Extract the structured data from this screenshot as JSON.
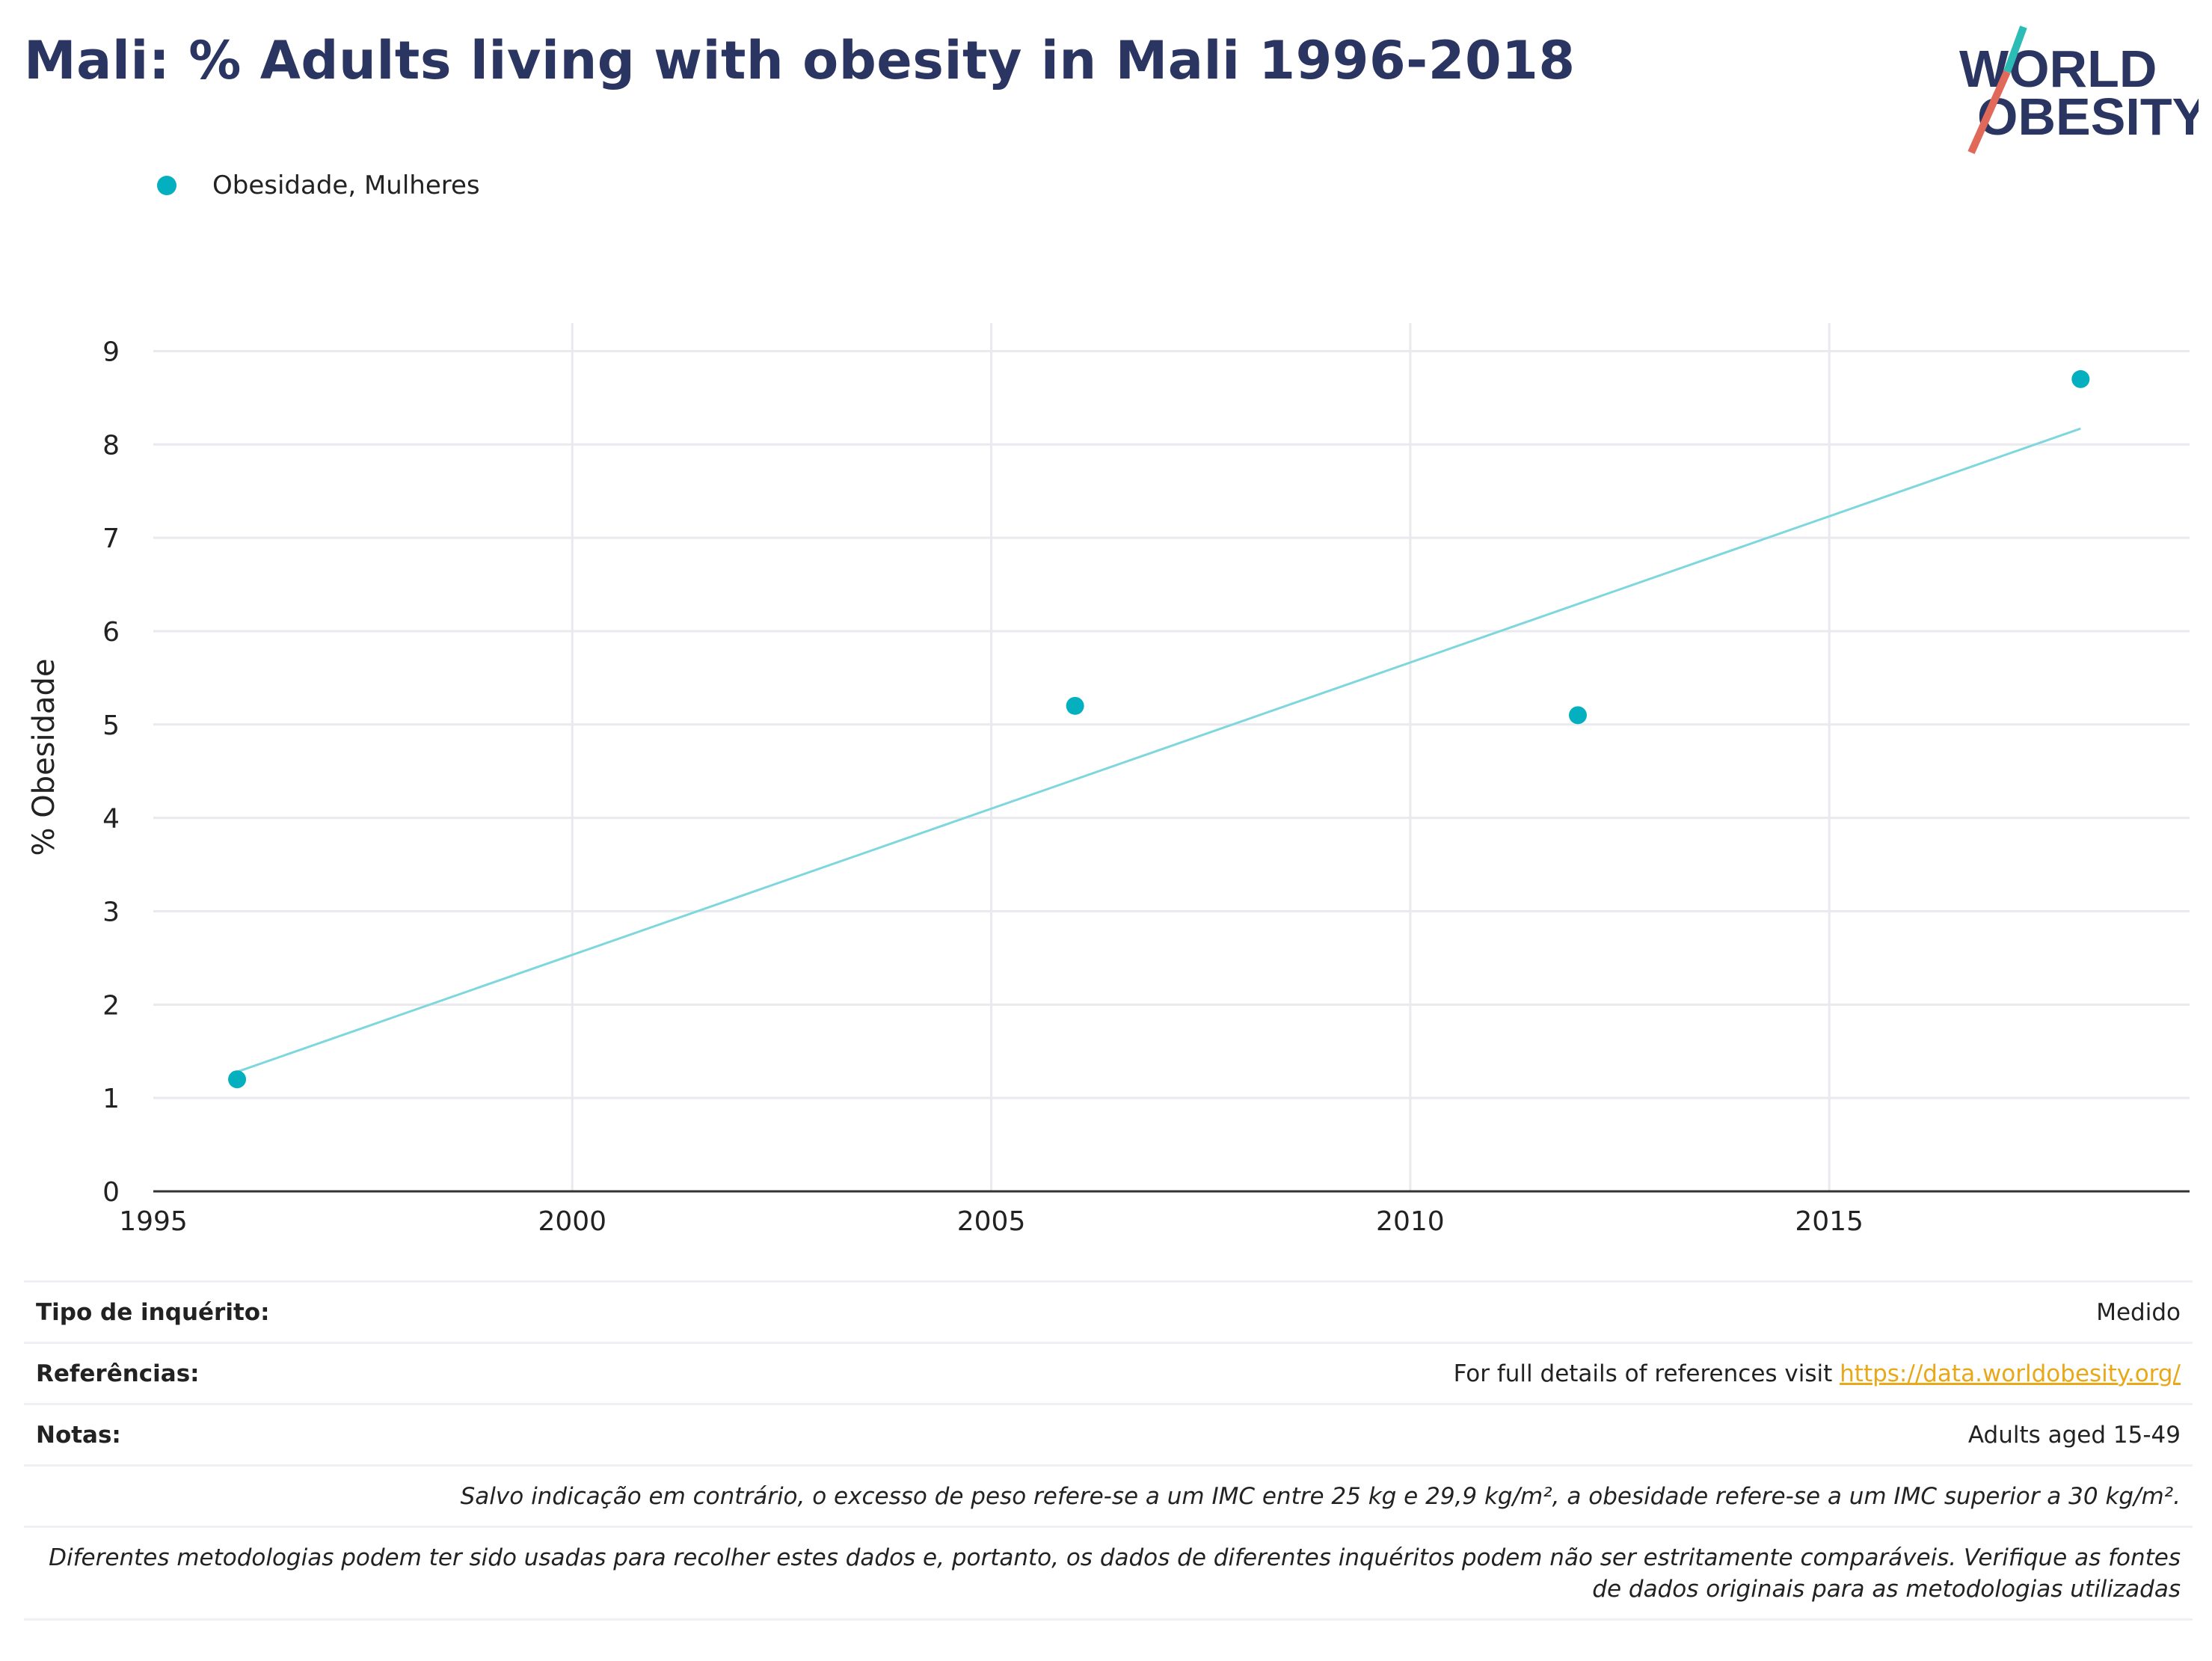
{
  "title": "Mali: % Adults living with obesity in Mali 1996-2018",
  "logo": {
    "line1": "WORLD",
    "line2": "OBESITY",
    "brand_color": "#2b3562",
    "slash_teal": "#2bbcb6",
    "slash_red": "#e0695a"
  },
  "legend": {
    "label": "Obesidade, Mulheres",
    "color": "#04b0c0"
  },
  "chart_data": {
    "type": "scatter",
    "series": [
      {
        "name": "Obesidade, Mulheres",
        "color": "#04b0c0",
        "x": [
          1996,
          2006,
          2012,
          2018
        ],
        "y": [
          1.2,
          5.2,
          5.1,
          8.7
        ]
      }
    ],
    "trendline": {
      "color": "#7fd7de",
      "x": [
        1996,
        2018
      ],
      "y": [
        1.28,
        8.17
      ]
    },
    "xlabel": "",
    "ylabel": "% Obesidade",
    "xlim": [
      1995,
      2019.3
    ],
    "ylim": [
      0,
      9.3
    ],
    "xticks": [
      1995,
      2000,
      2005,
      2010,
      2015
    ],
    "yticks": [
      0,
      1,
      2,
      3,
      4,
      5,
      6,
      7,
      8,
      9
    ],
    "grid": true
  },
  "info": {
    "survey_label": "Tipo de inquérito:",
    "survey_value": "Medido",
    "references_label": "Referências:",
    "references_text": "For full details of references visit ",
    "references_link": "https://data.worldobesity.org/",
    "notes_label": "Notas:",
    "notes_value": "Adults aged 15-49",
    "bmi_note": "Salvo indicação em contrário, o excesso de peso refere-se a um IMC entre 25 kg e 29,9 kg/m², a obesidade refere-se a um IMC superior a 30 kg/m².",
    "methodology_note_1": "Diferentes metodologias podem ter sido usadas para recolher estes dados e, portanto, os dados de diferentes inquéritos podem não ser estritamente comparáveis. Verifique as fontes",
    "methodology_note_2": "de dados originais para as metodologias utilizadas"
  }
}
